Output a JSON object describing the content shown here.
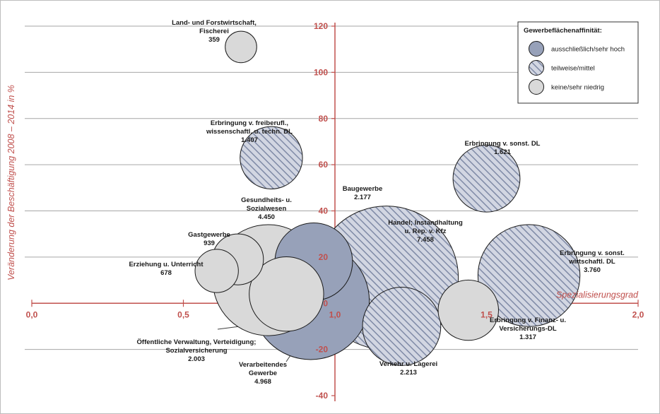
{
  "chart_data": {
    "type": "scatter",
    "variant": "bubble",
    "xlabel": "Spezialisierungsgrad",
    "ylabel": "Veränderung der Beschäftigung 2008 – 2014 in %",
    "xlim": [
      0.0,
      2.0
    ],
    "ylim": [
      -40,
      120
    ],
    "x_ticks": [
      "0,0",
      "0,5",
      "1,0",
      "1,5",
      "2,0"
    ],
    "y_ticks": [
      "-40",
      "-20",
      "0",
      "20",
      "40",
      "60",
      "80",
      "100",
      "120"
    ],
    "grid": "horizontal",
    "colors": {
      "axis": "#c0504d",
      "high": "#97a1b9",
      "medium_fill": "#d2d6e2",
      "medium_hatch": "#7f8aa6",
      "low": "#d9d9d9",
      "outline": "#1a1a1a",
      "grid": "#a6a6a6",
      "leader": "#404040"
    },
    "legend": {
      "title": "Gewerbeflächenaffinität:",
      "placement": "top-right",
      "items": [
        {
          "key": "high",
          "label": "ausschließlich/sehr hoch"
        },
        {
          "key": "medium",
          "label": "teilweise/mittel"
        },
        {
          "key": "low",
          "label": "keine/sehr niedrig"
        }
      ]
    },
    "bubbles": [
      {
        "name": [
          "Land- und Forstwirtschaft,",
          "Fischerei"
        ],
        "value": "359",
        "size": 359,
        "x": 0.69,
        "y": 111,
        "affinity": "low"
      },
      {
        "name": [
          "Erbringung v. freiberufl.,",
          "wissenschaftl. u. techn. DL"
        ],
        "value": "1.407",
        "size": 1407,
        "x": 0.79,
        "y": 63,
        "affinity": "medium"
      },
      {
        "name": [
          "Erbringung v. sonst. DL"
        ],
        "value": "1.621",
        "size": 1621,
        "x": 1.5,
        "y": 54,
        "affinity": "medium"
      },
      {
        "name": [
          "Gesundheits- u.",
          "Sozialwesen"
        ],
        "value": "4.450",
        "size": 4450,
        "x": 0.78,
        "y": 10,
        "affinity": "low"
      },
      {
        "name": [
          "Gastgewerbe"
        ],
        "value": "939",
        "size": 939,
        "x": 0.68,
        "y": 19,
        "affinity": "low"
      },
      {
        "name": [
          "Erziehung u. Unterricht"
        ],
        "value": "678",
        "size": 678,
        "x": 0.61,
        "y": 14,
        "affinity": "low"
      },
      {
        "name": [
          "Verarbeitendes",
          "Gewerbe"
        ],
        "value": "4.968",
        "size": 4968,
        "x": 0.92,
        "y": 1,
        "affinity": "high"
      },
      {
        "name": [
          "Öffentliche Verwaltung, Verteidigung;",
          "Sozialversicherung"
        ],
        "value": "2.003",
        "size": 2003,
        "x": 0.84,
        "y": 4,
        "affinity": "low"
      },
      {
        "name": [
          "Baugewerbe"
        ],
        "value": "2.177",
        "size": 2177,
        "x": 0.93,
        "y": 18,
        "affinity": "high"
      },
      {
        "name": [
          "Handel; Instandhaltung",
          "u. Rep. v. Kfz"
        ],
        "value": "7.458",
        "size": 7458,
        "x": 1.17,
        "y": 11,
        "affinity": "medium"
      },
      {
        "name": [
          "Erbringung v. sonst.",
          "wirtschaftl. DL"
        ],
        "value": "3.760",
        "size": 3760,
        "x": 1.64,
        "y": 12,
        "affinity": "medium"
      },
      {
        "name": [
          "Verkehr u. Lagerei"
        ],
        "value": "2.213",
        "size": 2213,
        "x": 1.22,
        "y": -10,
        "affinity": "medium"
      },
      {
        "name": [
          "Erbringung v. Finanz- u.",
          "Versicherungs-DL"
        ],
        "value": "1.317",
        "size": 1317,
        "x": 1.44,
        "y": -3,
        "affinity": "low"
      }
    ]
  }
}
